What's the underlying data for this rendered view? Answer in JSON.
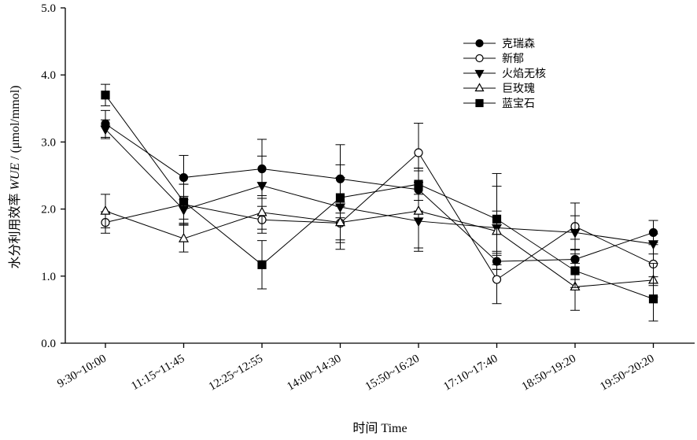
{
  "chart_data": {
    "type": "line",
    "xlabel": "时间 Time",
    "ylabel_prefix": "水分利用效率 ",
    "ylabel_italic": "WUE",
    "ylabel_suffix": " / (μmol/mmol)",
    "ylim": [
      0,
      5
    ],
    "yticks": [
      "0.0",
      "1.0",
      "2.0",
      "3.0",
      "4.0",
      "5.0"
    ],
    "categories": [
      "9:30~10:00",
      "11:15~11:45",
      "12:25~12:55",
      "14:00~14:30",
      "15:50~16:20",
      "17:10~17:40",
      "18:50~19:20",
      "19:50~20:20"
    ],
    "legend_position": "top-right",
    "series": [
      {
        "name": "克瑞森",
        "marker": "circle-filled",
        "values": [
          3.27,
          2.47,
          2.6,
          2.45,
          2.29,
          1.22,
          1.25,
          1.65
        ],
        "errors": [
          0.2,
          0.33,
          0.44,
          0.51,
          0.32,
          0.12,
          0.3,
          0.18
        ]
      },
      {
        "name": "新郁",
        "marker": "circle-open",
        "values": [
          1.8,
          2.07,
          1.84,
          1.79,
          2.84,
          0.95,
          1.74,
          1.18
        ],
        "errors": [
          0.16,
          0.3,
          0.2,
          0.25,
          0.44,
          0.36,
          0.35,
          0.32
        ]
      },
      {
        "name": "火焰无核",
        "marker": "triangle-down-filled",
        "values": [
          3.19,
          1.99,
          2.35,
          2.03,
          1.82,
          1.72,
          1.65,
          1.48
        ],
        "errors": [
          0.14,
          0.2,
          0.44,
          0.63,
          0.4,
          0.62,
          0.25,
          0.15
        ]
      },
      {
        "name": "巨玫瑰",
        "marker": "triangle-up-open",
        "values": [
          1.97,
          1.56,
          1.95,
          1.8,
          1.97,
          1.67,
          0.84,
          0.94
        ],
        "errors": [
          0.25,
          0.2,
          0.25,
          0.3,
          0.6,
          0.3,
          0.35,
          0.25
        ]
      },
      {
        "name": "蓝宝石",
        "marker": "square-filled",
        "values": [
          3.7,
          2.11,
          1.17,
          2.17,
          2.37,
          1.85,
          1.08,
          0.66
        ],
        "errors": [
          0.16,
          0.26,
          0.36,
          0.3,
          0.24,
          0.68,
          0.25,
          0.33
        ]
      }
    ]
  }
}
